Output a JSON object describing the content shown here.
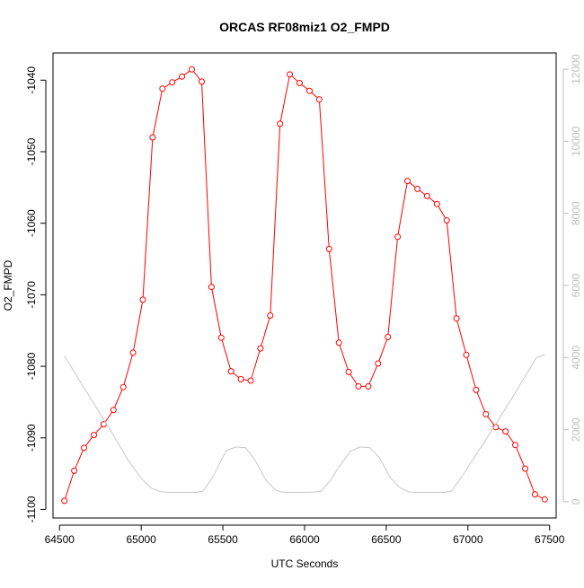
{
  "chart_data": {
    "type": "line",
    "title": "ORCAS RF08miz1 O2_FMPD",
    "xlabel": "UTC Seconds",
    "ylabel": "O2_FMPD",
    "xlim": [
      64460,
      67540
    ],
    "ylim": [
      -1101.2,
      -1036.2
    ],
    "y2lim": [
      -450,
      12450
    ],
    "xticks": [
      64500,
      65000,
      65500,
      66000,
      66500,
      67000,
      67500
    ],
    "xtick_labels": [
      "64500",
      "65000",
      "65500",
      "66000",
      "66500",
      "67000",
      "67500"
    ],
    "yticks": [
      -1100,
      -1090,
      -1080,
      -1070,
      -1060,
      -1050,
      -1040
    ],
    "ytick_labels": [
      "-1100",
      "-1090",
      "-1080",
      "-1070",
      "-1060",
      "-1050",
      "-1040"
    ],
    "y2ticks": [
      0,
      2000,
      4000,
      6000,
      8000,
      10000,
      12000
    ],
    "y2tick_labels": [
      "0",
      "2000",
      "4000",
      "6000",
      "8000",
      "10000",
      "12000"
    ],
    "grid": false,
    "series": [
      {
        "axis": "left",
        "color": "#ff0000",
        "marker": "open-circle",
        "x": [
          64530,
          64590,
          64650,
          64710,
          64770,
          64830,
          64890,
          64950,
          65010,
          65070,
          65130,
          65190,
          65250,
          65310,
          65370,
          65430,
          65490,
          65550,
          65610,
          65670,
          65730,
          65790,
          65850,
          65910,
          65970,
          66030,
          66090,
          66150,
          66210,
          66270,
          66330,
          66390,
          66450,
          66510,
          66570,
          66630,
          66690,
          66750,
          66810,
          66870,
          66930,
          66990,
          67050,
          67110,
          67170,
          67230,
          67290,
          67350,
          67410,
          67470
        ],
        "values": [
          -1098.8,
          -1094.6,
          -1091.4,
          -1089.6,
          -1088.1,
          -1086.1,
          -1082.9,
          -1078.1,
          -1070.7,
          -1048.0,
          -1041.2,
          -1040.3,
          -1039.5,
          -1038.5,
          -1040.2,
          -1068.9,
          -1076.0,
          -1080.7,
          -1081.8,
          -1082.0,
          -1077.5,
          -1072.9,
          -1046.1,
          -1039.2,
          -1040.4,
          -1041.5,
          -1042.7,
          -1063.6,
          -1076.7,
          -1080.8,
          -1082.8,
          -1082.8,
          -1079.6,
          -1075.9,
          -1061.9,
          -1054.1,
          -1055.2,
          -1056.2,
          -1057.3,
          -1059.6,
          -1073.3,
          -1078.4,
          -1083.3,
          -1086.7,
          -1088.5,
          -1089.1,
          -1091.0,
          -1094.3,
          -1097.9,
          -1098.6
        ]
      },
      {
        "axis": "right",
        "color": "#c8c8c8",
        "marker": "none",
        "x": [
          64530,
          64620,
          64720,
          64820,
          64920,
          65000,
          65060,
          65120,
          65180,
          65240,
          65300,
          65340,
          65380,
          65440,
          65520,
          65580,
          65640,
          65700,
          65760,
          65820,
          65860,
          65900,
          65960,
          66000,
          66060,
          66100,
          66160,
          66200,
          66280,
          66340,
          66400,
          66460,
          66520,
          66580,
          66640,
          66700,
          66760,
          66800,
          66860,
          66900,
          66960,
          67000,
          67100,
          67200,
          67300,
          67360,
          67420,
          67470
        ],
        "values": [
          4050,
          3380,
          2650,
          1920,
          1150,
          650,
          380,
          280,
          260,
          260,
          260,
          260,
          300,
          700,
          1420,
          1520,
          1500,
          1130,
          620,
          330,
          270,
          260,
          260,
          260,
          270,
          290,
          600,
          900,
          1400,
          1520,
          1500,
          1210,
          700,
          400,
          270,
          260,
          260,
          260,
          260,
          300,
          680,
          960,
          1650,
          2370,
          3100,
          3560,
          4000,
          4080
        ]
      }
    ]
  }
}
